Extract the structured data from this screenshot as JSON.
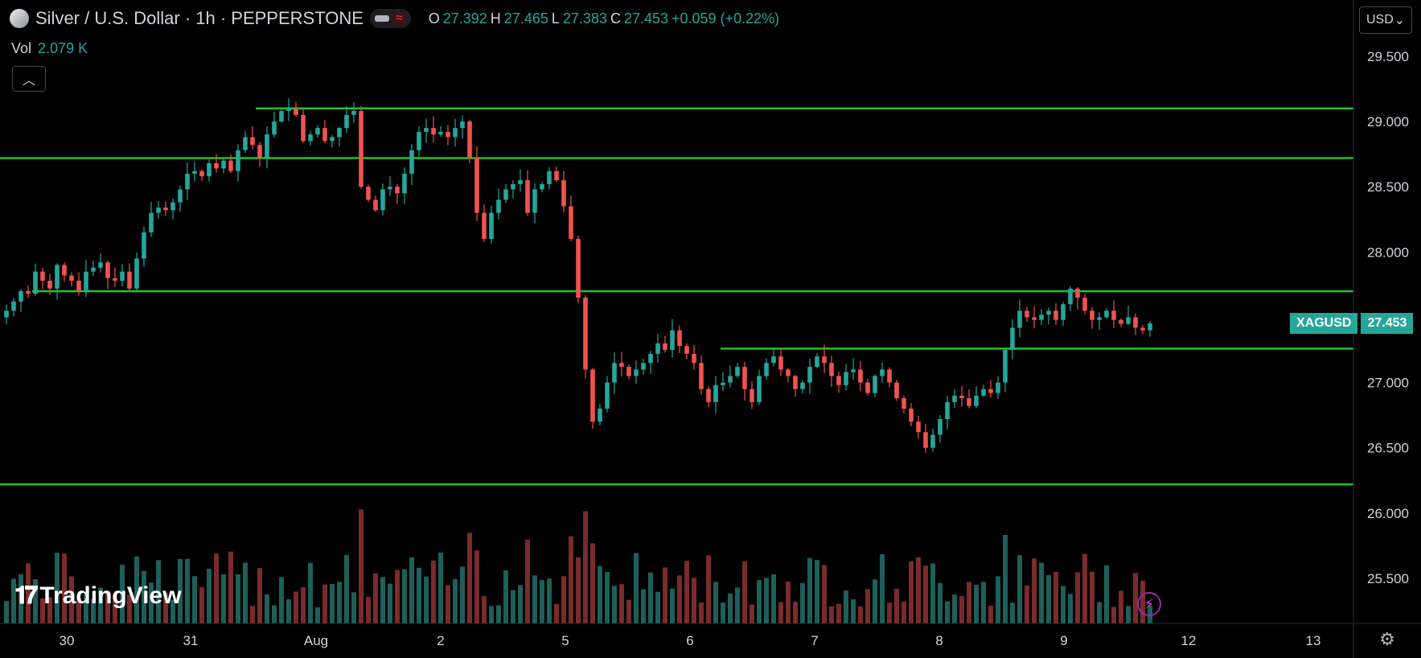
{
  "header": {
    "symbol_title": "Silver / U.S. Dollar · 1h · PEPPERSTONE",
    "open_label": "O",
    "open": "27.392",
    "high_label": "H",
    "high": "27.465",
    "low_label": "L",
    "low": "27.383",
    "close_label": "C",
    "close": "27.453",
    "change": "+0.059 (+0.22%)"
  },
  "volume": {
    "label": "Vol",
    "value": "2.079 K"
  },
  "currency": "USD",
  "price_tag": {
    "symbol": "XAGUSD",
    "value": "27.453"
  },
  "branding": "TradingView",
  "colors": {
    "up": "#26a69a",
    "down": "#ef5350",
    "levels": "#22c322",
    "vol_up": "#1e5f59",
    "vol_down": "#7a2b2b"
  },
  "chart_data": {
    "type": "candlestick",
    "y_axis": {
      "ticks": [
        "25.500",
        "26.000",
        "26.500",
        "27.000",
        "27.500",
        "28.000",
        "28.500",
        "29.000",
        "29.500"
      ],
      "range": [
        25.2,
        29.75
      ]
    },
    "x_axis": {
      "ticks": [
        "30",
        "31",
        "Aug",
        "2",
        "5",
        "6",
        "7",
        "8",
        "9",
        "12",
        "13"
      ]
    },
    "horizontal_levels": [
      29.1,
      28.72,
      27.7,
      27.26,
      26.22
    ],
    "closes": [
      27.55,
      27.62,
      27.7,
      27.68,
      27.85,
      27.78,
      27.72,
      27.9,
      27.82,
      27.78,
      27.7,
      27.85,
      27.88,
      27.92,
      27.8,
      27.78,
      27.85,
      27.72,
      27.95,
      28.15,
      28.3,
      28.34,
      28.32,
      28.38,
      28.48,
      28.6,
      28.62,
      28.58,
      28.68,
      28.64,
      28.7,
      28.62,
      28.78,
      28.88,
      28.82,
      28.72,
      28.9,
      29.0,
      29.08,
      29.1,
      29.05,
      28.85,
      28.9,
      28.95,
      28.85,
      28.88,
      28.95,
      29.05,
      29.08,
      28.5,
      28.4,
      28.32,
      28.48,
      28.5,
      28.45,
      28.6,
      28.78,
      28.92,
      28.95,
      28.9,
      28.92,
      28.88,
      28.95,
      29.0,
      28.72,
      28.3,
      28.1,
      28.3,
      28.4,
      28.48,
      28.52,
      28.55,
      28.3,
      28.48,
      28.52,
      28.62,
      28.55,
      28.35,
      28.1,
      27.65,
      27.1,
      26.7,
      26.8,
      27.0,
      27.15,
      27.12,
      27.05,
      27.1,
      27.15,
      27.22,
      27.3,
      27.25,
      27.4,
      27.28,
      27.22,
      27.15,
      26.95,
      26.85,
      26.98,
      27.0,
      27.05,
      27.12,
      26.95,
      26.85,
      27.05,
      27.15,
      27.2,
      27.1,
      27.05,
      26.95,
      27.0,
      27.12,
      27.2,
      27.15,
      27.05,
      26.98,
      27.08,
      27.1,
      27.0,
      26.92,
      27.05,
      27.1,
      27.0,
      26.88,
      26.8,
      26.7,
      26.62,
      26.5,
      26.6,
      26.72,
      26.85,
      26.9,
      26.88,
      26.82,
      26.9,
      26.95,
      26.92,
      27.0,
      27.25,
      27.42,
      27.55,
      27.5,
      27.48,
      27.52,
      27.55,
      27.48,
      27.6,
      27.72,
      27.65,
      27.55,
      27.48,
      27.5,
      27.55,
      27.48,
      27.45,
      27.5,
      27.42,
      27.4,
      27.453
    ],
    "volume_notes": "volume histogram along bottom, colored by candle direction"
  }
}
